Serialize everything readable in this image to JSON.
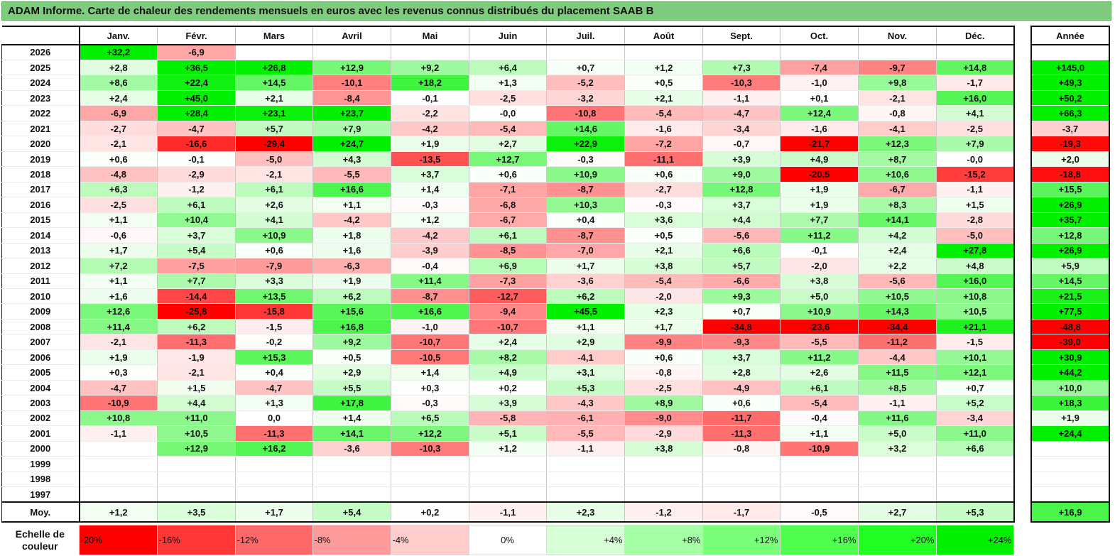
{
  "title": "ADAM Informe. Carte de chaleur des rendements mensuels en euros avec les revenus connus distribués du placement SAAB B",
  "chart_data": {
    "type": "heatmap",
    "title": "ADAM Informe. Carte de chaleur des rendements mensuels en euros avec les revenus connus distribués du placement SAAB B",
    "months": [
      "Janv.",
      "Févr.",
      "Mars",
      "Avril",
      "Mai",
      "Juin",
      "Juil.",
      "Août",
      "Sept.",
      "Oct.",
      "Nov.",
      "Déc."
    ],
    "year_header": "Année",
    "rows": [
      {
        "year": "2026",
        "months": [
          "+32,2",
          "-6,9",
          "",
          "",
          "",
          "",
          "",
          "",
          "",
          "",
          "",
          ""
        ],
        "total": ""
      },
      {
        "year": "2025",
        "months": [
          "+2,8",
          "+36,5",
          "+26,8",
          "+12,9",
          "+9,2",
          "+6,4",
          "+0,7",
          "+1,2",
          "+7,3",
          "-7,4",
          "-9,7",
          "+14,8"
        ],
        "total": "+145,0"
      },
      {
        "year": "2024",
        "months": [
          "+8,6",
          "+22,4",
          "+14,5",
          "-10,1",
          "+18,2",
          "+1,3",
          "-5,2",
          "+0,5",
          "-10,3",
          "-1,0",
          "+9,8",
          "-1,7"
        ],
        "total": "+49,3"
      },
      {
        "year": "2023",
        "months": [
          "+2,4",
          "+45,0",
          "+2,1",
          "-8,4",
          "-0,1",
          "-2,5",
          "-3,2",
          "+2,1",
          "-1,1",
          "+0,1",
          "-2,1",
          "+16,0"
        ],
        "total": "+50,2"
      },
      {
        "year": "2022",
        "months": [
          "-6,9",
          "+28,4",
          "+23,1",
          "+23,7",
          "-2,2",
          "-0,0",
          "-10,8",
          "-5,4",
          "-4,7",
          "+12,4",
          "-0,8",
          "+4,1"
        ],
        "total": "+66,3"
      },
      {
        "year": "2021",
        "months": [
          "-2,7",
          "-4,7",
          "+5,7",
          "+7,9",
          "-4,2",
          "-5,4",
          "+14,6",
          "-1,6",
          "-3,4",
          "-1,6",
          "-4,1",
          "-2,5"
        ],
        "total": "-3,7"
      },
      {
        "year": "2020",
        "months": [
          "-2,1",
          "-16,6",
          "-29,4",
          "+24,7",
          "+1,9",
          "+2,7",
          "+22,9",
          "-7,2",
          "-0,7",
          "-21,7",
          "+12,3",
          "+7,9"
        ],
        "total": "-19,3"
      },
      {
        "year": "2019",
        "months": [
          "+0,6",
          "-0,1",
          "-5,0",
          "+4,3",
          "-13,5",
          "+12,7",
          "-0,3",
          "-11,1",
          "+3,9",
          "+4,9",
          "+8,7",
          "-0,0"
        ],
        "total": "+2,0"
      },
      {
        "year": "2018",
        "months": [
          "-4,8",
          "-2,9",
          "-2,1",
          "-5,5",
          "+3,7",
          "+0,6",
          "+10,9",
          "+0,6",
          "+9,0",
          "-20,5",
          "+10,6",
          "-15,2"
        ],
        "total": "-18,8"
      },
      {
        "year": "2017",
        "months": [
          "+6,3",
          "-1,2",
          "+6,1",
          "+16,6",
          "+1,4",
          "-7,1",
          "-8,7",
          "-2,7",
          "+12,8",
          "+1,9",
          "-6,7",
          "-1,1"
        ],
        "total": "+15,5"
      },
      {
        "year": "2016",
        "months": [
          "-2,5",
          "+6,1",
          "+2,6",
          "+1,1",
          "-0,3",
          "-6,8",
          "+10,3",
          "-0,3",
          "+3,7",
          "+1,9",
          "+8,3",
          "+1,5"
        ],
        "total": "+26,9"
      },
      {
        "year": "2015",
        "months": [
          "+1,1",
          "+10,4",
          "+4,1",
          "-4,2",
          "+1,2",
          "-6,7",
          "+0,4",
          "+3,6",
          "+4,4",
          "+7,7",
          "+14,1",
          "-2,8"
        ],
        "total": "+35,7"
      },
      {
        "year": "2014",
        "months": [
          "-0,6",
          "+3,7",
          "+10,9",
          "+1,8",
          "-4,2",
          "+6,1",
          "-8,7",
          "+0,5",
          "-5,6",
          "+11,2",
          "+4,2",
          "-5,0"
        ],
        "total": "+12,8"
      },
      {
        "year": "2013",
        "months": [
          "+1,7",
          "+5,4",
          "+0,6",
          "+1,6",
          "-3,9",
          "-8,5",
          "-7,0",
          "+2,1",
          "+6,6",
          "-0,1",
          "+2,4",
          "+27,8"
        ],
        "total": "+26,9"
      },
      {
        "year": "2012",
        "months": [
          "+7,2",
          "-7,5",
          "-7,9",
          "-6,3",
          "-0,4",
          "+6,9",
          "+1,7",
          "+3,8",
          "+5,7",
          "-2,0",
          "+2,2",
          "+4,8"
        ],
        "total": "+5,9"
      },
      {
        "year": "2011",
        "months": [
          "+1,1",
          "+7,7",
          "+3,3",
          "+1,9",
          "+11,4",
          "-7,3",
          "-3,6",
          "-5,4",
          "-6,6",
          "+3,8",
          "-5,6",
          "+16,0"
        ],
        "total": "+14,5"
      },
      {
        "year": "2010",
        "months": [
          "+1,6",
          "-14,4",
          "+13,5",
          "+6,2",
          "-8,7",
          "-12,7",
          "+6,2",
          "-2,0",
          "+9,3",
          "+5,0",
          "+10,5",
          "+10,8"
        ],
        "total": "+21,5"
      },
      {
        "year": "2009",
        "months": [
          "+12,6",
          "-25,8",
          "-15,8",
          "+15,6",
          "+16,6",
          "-9,4",
          "+45,5",
          "+2,3",
          "+0,7",
          "+10,9",
          "+14,3",
          "+10,5"
        ],
        "total": "+77,5"
      },
      {
        "year": "2008",
        "months": [
          "+11,4",
          "+6,2",
          "-1,5",
          "+16,8",
          "-1,0",
          "-10,7",
          "+1,1",
          "+1,7",
          "-34,8",
          "-23,6",
          "-34,4",
          "+21,1"
        ],
        "total": "-48,8"
      },
      {
        "year": "2007",
        "months": [
          "-2,1",
          "-11,3",
          "-0,2",
          "+9,2",
          "-10,7",
          "+2,4",
          "+2,9",
          "-9,9",
          "-9,3",
          "-5,5",
          "-11,2",
          "-1,5"
        ],
        "total": "-39,0"
      },
      {
        "year": "2006",
        "months": [
          "+1,9",
          "-1,9",
          "+15,3",
          "+0,5",
          "-10,5",
          "+8,2",
          "-4,1",
          "+0,6",
          "+3,7",
          "+11,2",
          "-4,4",
          "+10,1"
        ],
        "total": "+30,9"
      },
      {
        "year": "2005",
        "months": [
          "+0,3",
          "-2,1",
          "+0,4",
          "+2,9",
          "+1,4",
          "+4,9",
          "+3,1",
          "-0,8",
          "+2,8",
          "+2,6",
          "+11,5",
          "+12,1"
        ],
        "total": "+44,2"
      },
      {
        "year": "2004",
        "months": [
          "-4,7",
          "+1,5",
          "-4,7",
          "+5,5",
          "+0,3",
          "+0,2",
          "+5,3",
          "-2,5",
          "-4,9",
          "+6,1",
          "+8,5",
          "+0,7"
        ],
        "total": "+10,0"
      },
      {
        "year": "2003",
        "months": [
          "-10,9",
          "+4,4",
          "+1,3",
          "+17,8",
          "-0,3",
          "+3,9",
          "-4,3",
          "+8,9",
          "+0,6",
          "-5,4",
          "-1,1",
          "+5,2"
        ],
        "total": "+18,3"
      },
      {
        "year": "2002",
        "months": [
          "+10,8",
          "+11,0",
          "0,0",
          "+1,4",
          "+6,5",
          "-5,8",
          "-6,1",
          "-9,0",
          "-11,7",
          "-0,4",
          "+11,6",
          "-3,4"
        ],
        "total": "+1,9"
      },
      {
        "year": "2001",
        "months": [
          "-1,1",
          "+10,5",
          "-11,3",
          "+14,1",
          "+12,2",
          "+5,1",
          "-5,5",
          "-2,9",
          "-11,3",
          "+1,1",
          "+5,0",
          "+11,0"
        ],
        "total": "+24,4"
      },
      {
        "year": "2000",
        "months": [
          "",
          "+12,9",
          "+16,2",
          "-3,6",
          "-10,3",
          "+1,2",
          "-1,1",
          "+3,8",
          "-0,8",
          "-10,9",
          "+3,2",
          "+6,6"
        ],
        "total": ""
      },
      {
        "year": "1999",
        "months": [
          "",
          "",
          "",
          "",
          "",
          "",
          "",
          "",
          "",
          "",
          "",
          ""
        ],
        "total": ""
      },
      {
        "year": "1998",
        "months": [
          "",
          "",
          "",
          "",
          "",
          "",
          "",
          "",
          "",
          "",
          "",
          ""
        ],
        "total": ""
      },
      {
        "year": "1997",
        "months": [
          "",
          "",
          "",
          "",
          "",
          "",
          "",
          "",
          "",
          "",
          "",
          ""
        ],
        "total": ""
      }
    ],
    "average": {
      "label": "Moy.",
      "months": [
        "+1,2",
        "+3,5",
        "+1,7",
        "+5,4",
        "+0,2",
        "-1,1",
        "+2,3",
        "-1,2",
        "-1,7",
        "-0,5",
        "+2,7",
        "+5,3"
      ],
      "total": "+16,9"
    },
    "color_scale": {
      "label": "Echelle de couleur",
      "steps": [
        {
          "label": "-20%",
          "value": -20,
          "color": "#ff0000"
        },
        {
          "label": "-16%",
          "value": -16,
          "color": "#ff3636"
        },
        {
          "label": "-12%",
          "value": -12,
          "color": "#ff6868"
        },
        {
          "label": "-8%",
          "value": -8,
          "color": "#ff9a9a"
        },
        {
          "label": "-4%",
          "value": -4,
          "color": "#ffcccc"
        },
        {
          "label": "0%",
          "value": 0,
          "color": "#ffffff"
        },
        {
          "label": "+4%",
          "value": 4,
          "color": "#d6ffd6"
        },
        {
          "label": "+8%",
          "value": 8,
          "color": "#a6ffa6"
        },
        {
          "label": "+12%",
          "value": 12,
          "color": "#7aff7a"
        },
        {
          "label": "+16%",
          "value": 16,
          "color": "#4eff4e"
        },
        {
          "label": "+20%",
          "value": 20,
          "color": "#22ff22"
        },
        {
          "label": "+24%",
          "value": 24,
          "color": "#00f000"
        }
      ]
    }
  }
}
